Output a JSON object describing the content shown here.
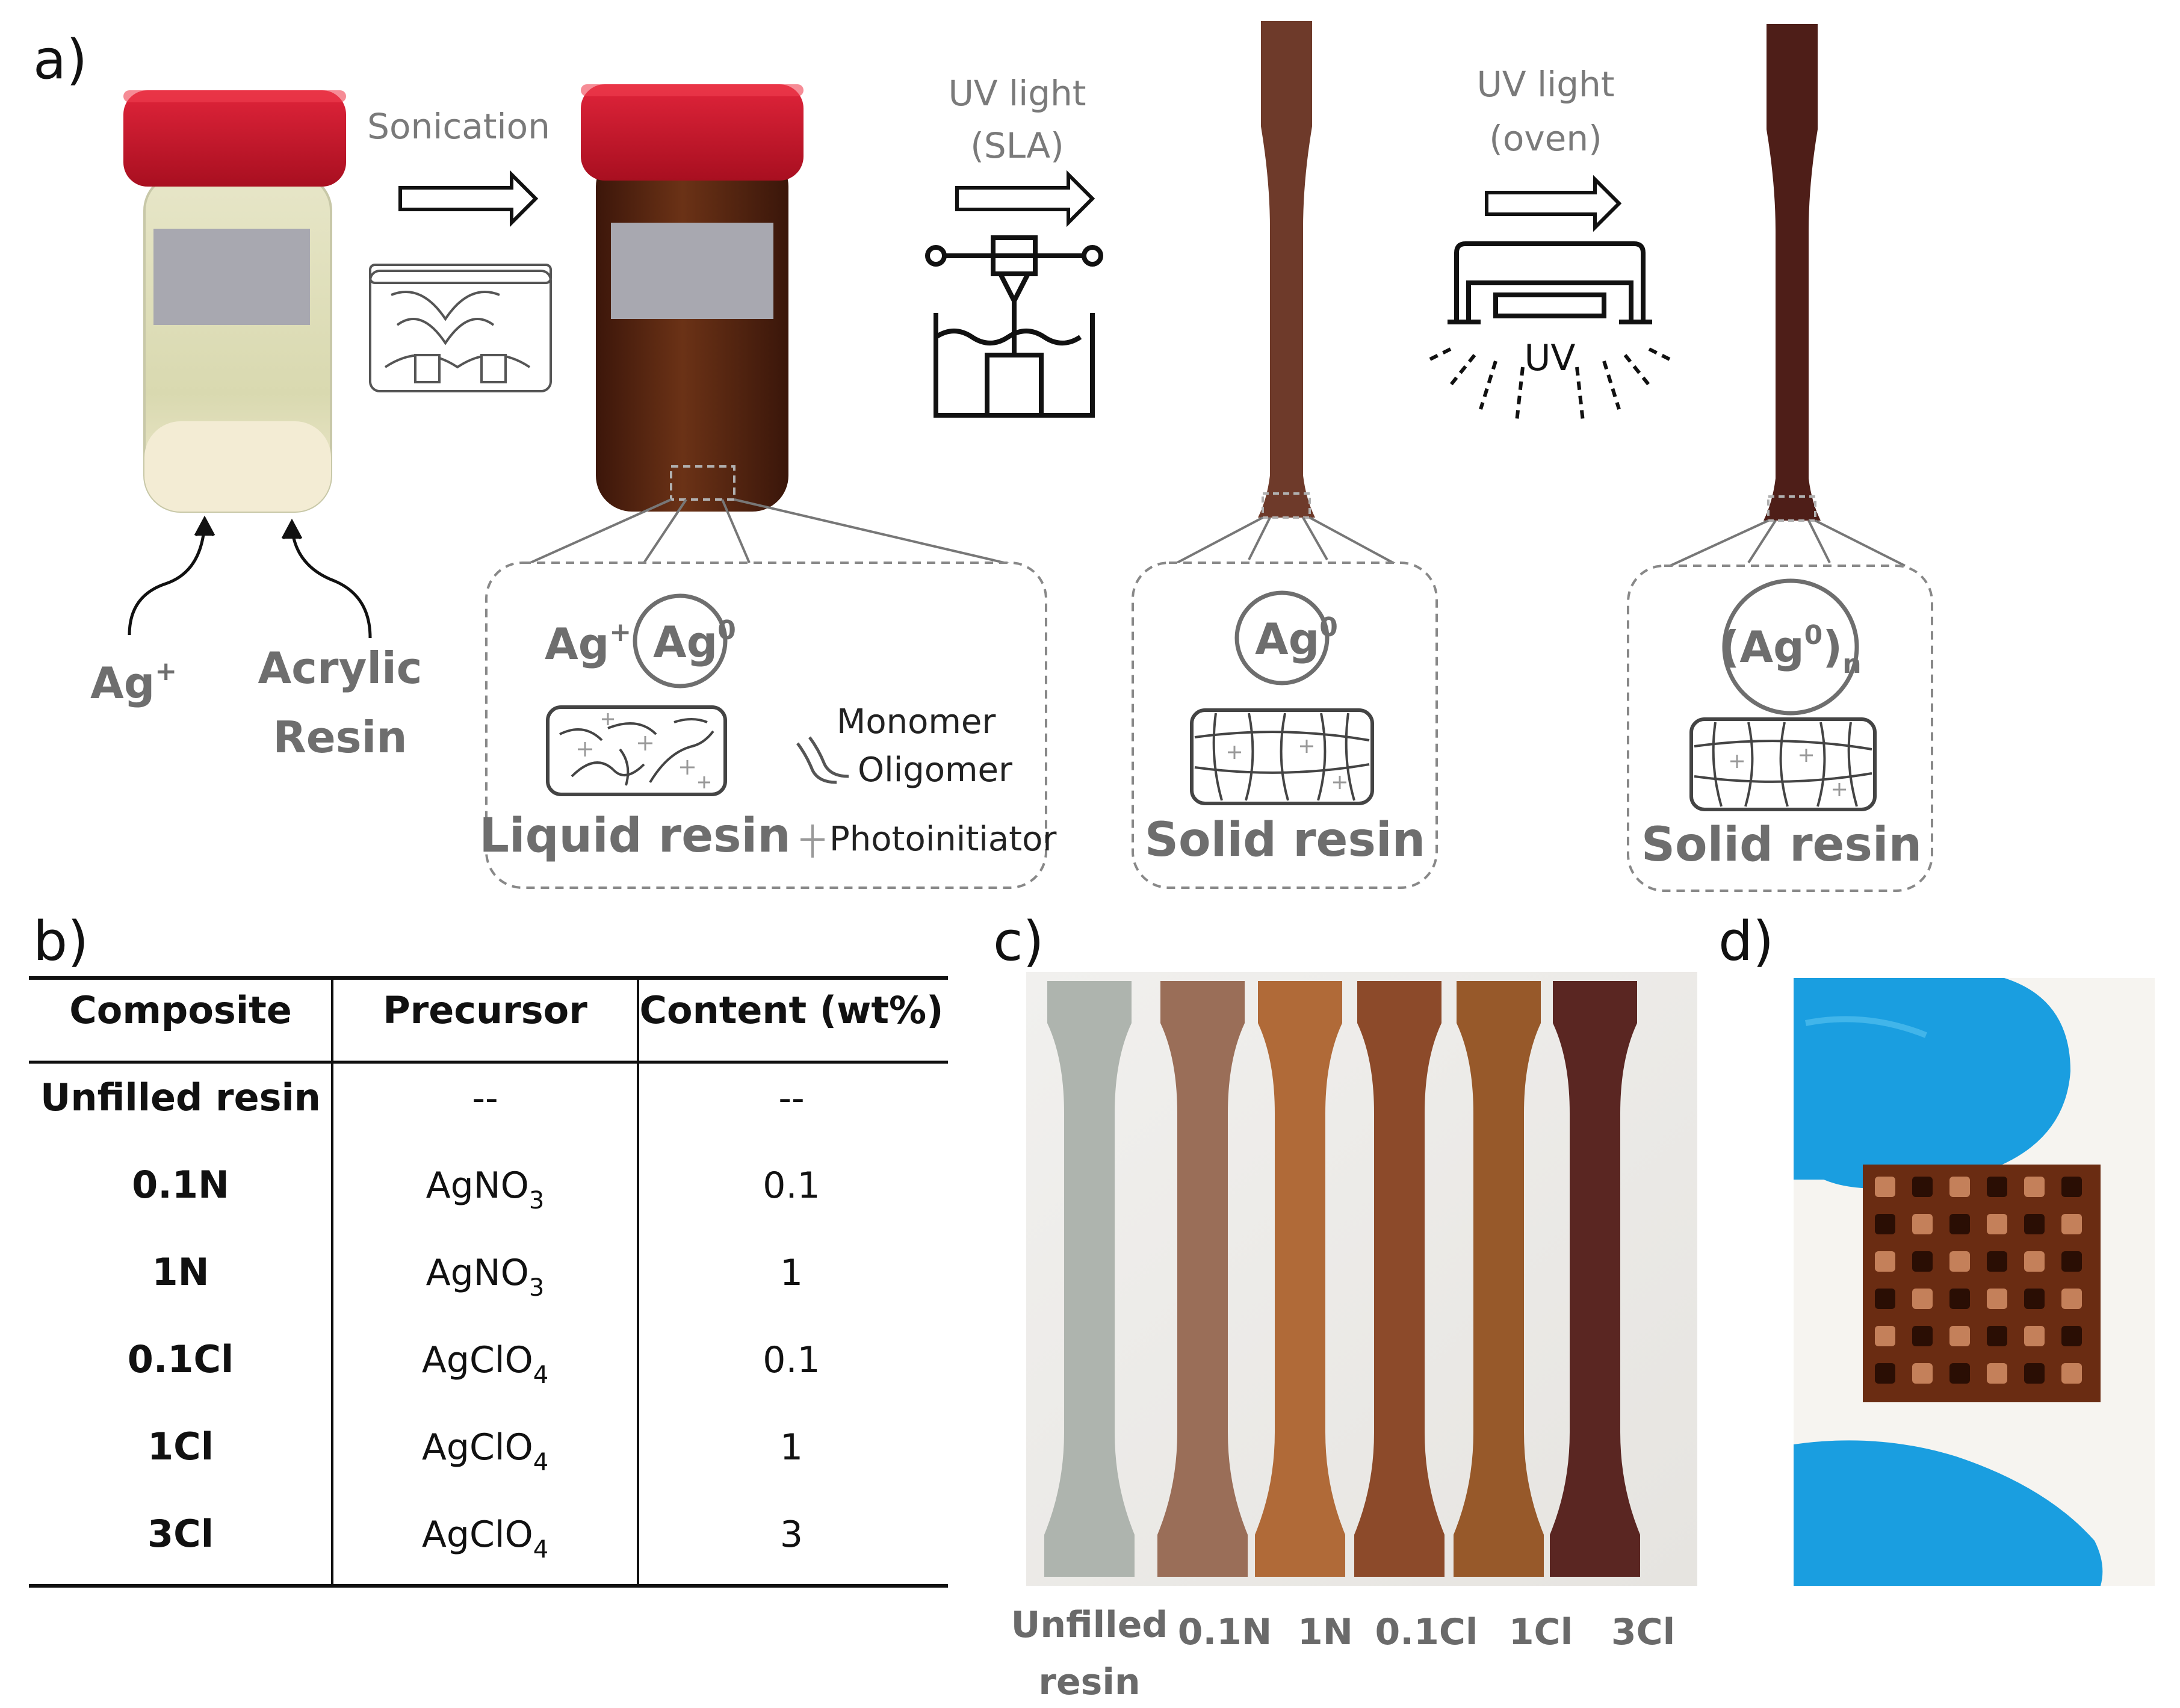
{
  "panels": {
    "a": "a)",
    "b": "b)",
    "c": "c)",
    "d": "d)"
  },
  "process": {
    "step1": "Sonication",
    "step2_line1": "UV light",
    "step2_line2": "(SLA)",
    "step3_line1": "UV light",
    "step3_line2": "(oven)",
    "uv_label": "UV"
  },
  "ingredients": {
    "silver_ion": "Ag",
    "silver_ion_sup": "+",
    "resin_line1": "Acrylic",
    "resin_line2": "Resin"
  },
  "insets": {
    "liquid": {
      "ion": "Ag",
      "ion_sup": "+",
      "metal": "Ag",
      "metal_sup": "0",
      "title": "Liquid resin"
    },
    "legend": {
      "monomer": "Monomer",
      "oligomer": "Oligomer",
      "photoinitiator": "Photoinitiator"
    },
    "solid1": {
      "metal": "Ag",
      "metal_sup": "0",
      "title": "Solid resin"
    },
    "solid2": {
      "paren_open": "(Ag",
      "metal_sup": "0",
      "paren_close": ")",
      "metal_sub": "n",
      "title": "Solid resin"
    }
  },
  "table": {
    "headers": [
      "Composite",
      "Precursor",
      "Content (wt%)"
    ],
    "rows": [
      {
        "composite": "Unfilled resin",
        "precursor": "--",
        "precursor_sub": "",
        "content": "--"
      },
      {
        "composite": "0.1N",
        "precursor": "AgNO",
        "precursor_sub": "3",
        "content": "0.1"
      },
      {
        "composite": "1N",
        "precursor": "AgNO",
        "precursor_sub": "3",
        "content": "1"
      },
      {
        "composite": "0.1Cl",
        "precursor": "AgClO",
        "precursor_sub": "4",
        "content": "0.1"
      },
      {
        "composite": "1Cl",
        "precursor": "AgClO",
        "precursor_sub": "4",
        "content": "1"
      },
      {
        "composite": "3Cl",
        "precursor": "AgClO",
        "precursor_sub": "4",
        "content": "3"
      }
    ]
  },
  "samples": {
    "labels": [
      "Unfilled",
      "0.1N",
      "1N",
      "0.1Cl",
      "1Cl",
      "3Cl"
    ],
    "label_line2": "resin",
    "colors": [
      "#aeb4ae",
      "#9a6e58",
      "#b06a38",
      "#8c4a2a",
      "#97592a",
      "#5a2622"
    ]
  },
  "colors": {
    "cap_red": "#c8142a",
    "jar_clear": "#dcdcb8",
    "jar_amber": "#5e2a12",
    "glove_blue": "#1a9ee0",
    "lattice": "#7a3a1c",
    "bar_solid": "#6e3a2a",
    "bar_dark": "#4e1e18",
    "label_grey": "#a8a8b0"
  }
}
